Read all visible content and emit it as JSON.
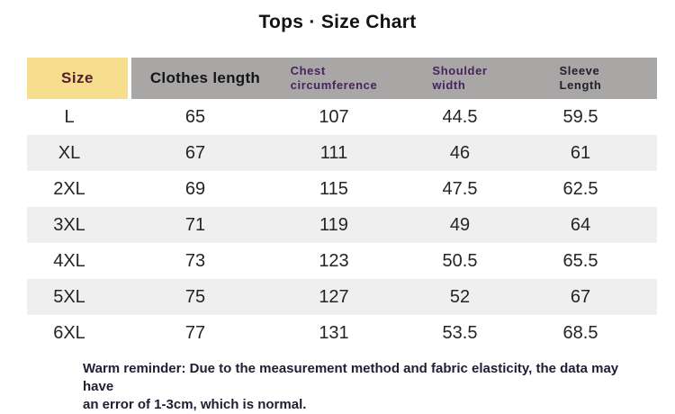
{
  "title": "Tops · Size Chart",
  "chart_data": {
    "type": "table",
    "title": "Tops · Size Chart",
    "columns": [
      "Size",
      "Clothes length",
      "Chest circumference",
      "Shoulder width",
      "Sleeve Length"
    ],
    "rows": [
      [
        "L",
        65,
        107,
        44.5,
        59.5
      ],
      [
        "XL",
        67,
        111,
        46,
        61
      ],
      [
        "2XL",
        69,
        115,
        47.5,
        62.5
      ],
      [
        "3XL",
        71,
        119,
        49,
        64
      ],
      [
        "4XL",
        73,
        123,
        50.5,
        65.5
      ],
      [
        "5XL",
        75,
        127,
        52,
        67
      ],
      [
        "6XL",
        77,
        131,
        53.5,
        68.5
      ]
    ],
    "note": "Warm reminder: Due to the measurement method and fabric elasticity, the data may have an error of 1-3cm, which is normal.",
    "layout": {
      "striped_rows": true,
      "legend": "none",
      "grid": "off"
    }
  },
  "header": {
    "size": "Size",
    "clothes_length": "Clothes length",
    "chest_line1": "Chest",
    "chest_line2": "circumference",
    "shoulder_line1": "Shoulder",
    "shoulder_line2": "width",
    "sleeve_line1": "Sleeve",
    "sleeve_line2": "Length"
  },
  "footer": {
    "line1": "Warm reminder: Due to the measurement method and fabric elasticity, the data may have",
    "line2": "an error of 1-3cm, which is normal."
  },
  "colors": {
    "size_header_bg": "#F7DE8E",
    "size_header_text": "#551B32",
    "header_gray_bg": "#A9A6A6",
    "clothes_header_text": "#141414",
    "purple_header_text": "#46245C",
    "sleeve_header_text": "#23202F",
    "row_alt_bg": "#EFEFEF",
    "value_text": "#242424",
    "note_text": "#1F1E33"
  }
}
